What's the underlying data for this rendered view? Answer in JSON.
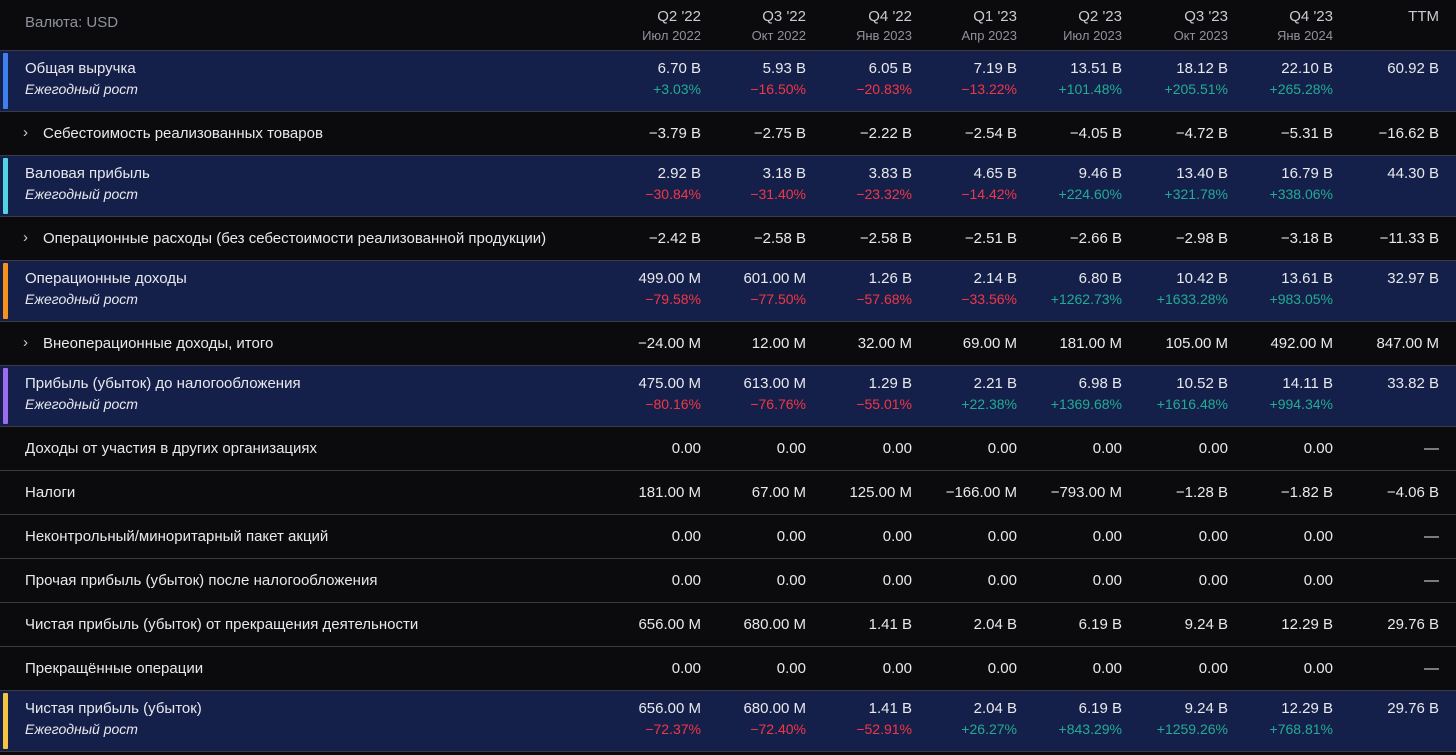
{
  "currency_label": "Валюта: USD",
  "colors": {
    "revenue_bar": "#3f7ff0",
    "gross_bar": "#4fd5e6",
    "opinc_bar": "#f7931a",
    "pretax_bar": "#9c6cf0",
    "net_bar": "#f5c542",
    "positive": "#22ab94",
    "negative": "#f23645",
    "highlight_bg": "#15204a"
  },
  "columns": [
    {
      "quarter": "Q2 '22",
      "date": "Июл 2022"
    },
    {
      "quarter": "Q3 '22",
      "date": "Окт 2022"
    },
    {
      "quarter": "Q4 '22",
      "date": "Янв 2023"
    },
    {
      "quarter": "Q1 '23",
      "date": "Апр 2023"
    },
    {
      "quarter": "Q2 '23",
      "date": "Июл 2023"
    },
    {
      "quarter": "Q3 '23",
      "date": "Окт 2023"
    },
    {
      "quarter": "Q4 '23",
      "date": "Янв 2024"
    },
    {
      "quarter": "TTM",
      "date": ""
    }
  ],
  "rows": [
    {
      "label": "Общая выручка",
      "sub": "Ежегодный рост",
      "values": [
        "6.70 B",
        "5.93 B",
        "6.05 B",
        "7.19 B",
        "13.51 B",
        "18.12 B",
        "22.10 B",
        "60.92 B"
      ],
      "growth": [
        "+3.03%",
        "−16.50%",
        "−20.83%",
        "−13.22%",
        "+101.48%",
        "+205.51%",
        "+265.28%"
      ]
    },
    {
      "label": "Себестоимость реализованных товаров",
      "values": [
        "−3.79 B",
        "−2.75 B",
        "−2.22 B",
        "−2.54 B",
        "−4.05 B",
        "−4.72 B",
        "−5.31 B",
        "−16.62 B"
      ]
    },
    {
      "label": "Валовая прибыль",
      "sub": "Ежегодный рост",
      "values": [
        "2.92 B",
        "3.18 B",
        "3.83 B",
        "4.65 B",
        "9.46 B",
        "13.40 B",
        "16.79 B",
        "44.30 B"
      ],
      "growth": [
        "−30.84%",
        "−31.40%",
        "−23.32%",
        "−14.42%",
        "+224.60%",
        "+321.78%",
        "+338.06%"
      ]
    },
    {
      "label": "Операционные расходы (без себестоимости реализованной продукции)",
      "values": [
        "−2.42 B",
        "−2.58 B",
        "−2.58 B",
        "−2.51 B",
        "−2.66 B",
        "−2.98 B",
        "−3.18 B",
        "−11.33 B"
      ]
    },
    {
      "label": "Операционные доходы",
      "sub": "Ежегодный рост",
      "values": [
        "499.00 M",
        "601.00 M",
        "1.26 B",
        "2.14 B",
        "6.80 B",
        "10.42 B",
        "13.61 B",
        "32.97 B"
      ],
      "growth": [
        "−79.58%",
        "−77.50%",
        "−57.68%",
        "−33.56%",
        "+1262.73%",
        "+1633.28%",
        "+983.05%"
      ]
    },
    {
      "label": "Внеоперационные доходы, итого",
      "values": [
        "−24.00 M",
        "12.00 M",
        "32.00 M",
        "69.00 M",
        "181.00 M",
        "105.00 M",
        "492.00 M",
        "847.00 M"
      ]
    },
    {
      "label": "Прибыль (убыток) до налогообложения",
      "sub": "Ежегодный рост",
      "values": [
        "475.00 M",
        "613.00 M",
        "1.29 B",
        "2.21 B",
        "6.98 B",
        "10.52 B",
        "14.11 B",
        "33.82 B"
      ],
      "growth": [
        "−80.16%",
        "−76.76%",
        "−55.01%",
        "+22.38%",
        "+1369.68%",
        "+1616.48%",
        "+994.34%"
      ]
    },
    {
      "label": "Доходы от участия в других организациях",
      "values": [
        "0.00",
        "0.00",
        "0.00",
        "0.00",
        "0.00",
        "0.00",
        "0.00",
        "—"
      ]
    },
    {
      "label": "Налоги",
      "values": [
        "181.00 M",
        "67.00 M",
        "125.00 M",
        "−166.00 M",
        "−793.00 M",
        "−1.28 B",
        "−1.82 B",
        "−4.06 B"
      ]
    },
    {
      "label": "Неконтрольный/миноритарный пакет акций",
      "values": [
        "0.00",
        "0.00",
        "0.00",
        "0.00",
        "0.00",
        "0.00",
        "0.00",
        "—"
      ]
    },
    {
      "label": "Прочая прибыль (убыток) после налогообложения",
      "values": [
        "0.00",
        "0.00",
        "0.00",
        "0.00",
        "0.00",
        "0.00",
        "0.00",
        "—"
      ]
    },
    {
      "label": "Чистая прибыль (убыток) от прекращения деятельности",
      "values": [
        "656.00 M",
        "680.00 M",
        "1.41 B",
        "2.04 B",
        "6.19 B",
        "9.24 B",
        "12.29 B",
        "29.76 B"
      ]
    },
    {
      "label": "Прекращённые операции",
      "values": [
        "0.00",
        "0.00",
        "0.00",
        "0.00",
        "0.00",
        "0.00",
        "0.00",
        "—"
      ]
    },
    {
      "label": "Чистая прибыль (убыток)",
      "sub": "Ежегодный рост",
      "values": [
        "656.00 M",
        "680.00 M",
        "1.41 B",
        "2.04 B",
        "6.19 B",
        "9.24 B",
        "12.29 B",
        "29.76 B"
      ],
      "growth": [
        "−72.37%",
        "−72.40%",
        "−52.91%",
        "+26.27%",
        "+843.29%",
        "+1259.26%",
        "+768.81%"
      ]
    }
  ]
}
